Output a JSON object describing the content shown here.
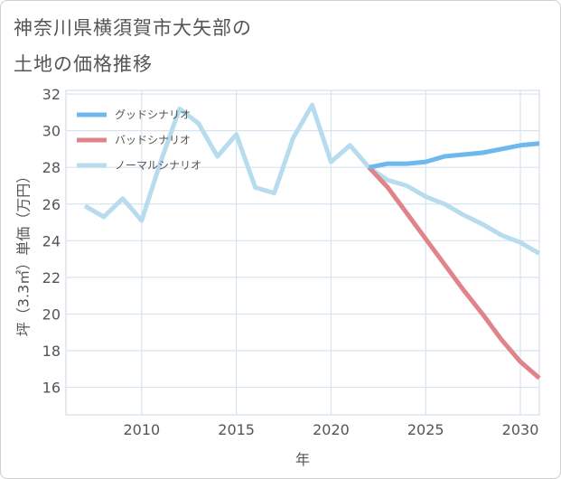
{
  "title": {
    "line1": "神奈川県横須賀市大矢部の",
    "line2": "土地の価格推移"
  },
  "chart_data": {
    "type": "line",
    "xlabel": "年",
    "ylabel": "坪（3.3㎡）単価（万円）",
    "xlim": [
      2006,
      2031
    ],
    "ylim": [
      14.5,
      32.2
    ],
    "xticks": [
      2010,
      2015,
      2020,
      2025,
      2030
    ],
    "yticks": [
      16,
      18,
      20,
      22,
      24,
      26,
      28,
      30,
      32
    ],
    "grid": true,
    "legend_position": "top-left",
    "series": [
      {
        "name": "グッドシナリオ",
        "color": "#6db8ec",
        "x": [
          2022,
          2023,
          2024,
          2025,
          2026,
          2027,
          2028,
          2029,
          2030,
          2031
        ],
        "values": [
          28.0,
          28.2,
          28.2,
          28.3,
          28.6,
          28.7,
          28.8,
          29.0,
          29.2,
          29.3
        ]
      },
      {
        "name": "バッドシナリオ",
        "color": "#e0838a",
        "x": [
          2022,
          2023,
          2024,
          2025,
          2026,
          2027,
          2028,
          2029,
          2030,
          2031
        ],
        "values": [
          28.0,
          26.9,
          25.5,
          24.1,
          22.7,
          21.3,
          20.0,
          18.6,
          17.4,
          16.5
        ]
      },
      {
        "name": "ノーマルシナリオ",
        "color": "#b6dcee",
        "x": [
          2007,
          2008,
          2009,
          2010,
          2011,
          2012,
          2013,
          2014,
          2015,
          2016,
          2017,
          2018,
          2019,
          2020,
          2021,
          2022,
          2023,
          2024,
          2025,
          2026,
          2027,
          2028,
          2029,
          2030,
          2031
        ],
        "values": [
          25.9,
          25.3,
          26.3,
          25.1,
          28.3,
          31.2,
          30.4,
          28.6,
          29.8,
          26.9,
          26.6,
          29.6,
          31.4,
          28.3,
          29.2,
          28.0,
          27.3,
          27.0,
          26.4,
          26.0,
          25.4,
          24.9,
          24.3,
          23.9,
          23.3
        ]
      }
    ]
  }
}
